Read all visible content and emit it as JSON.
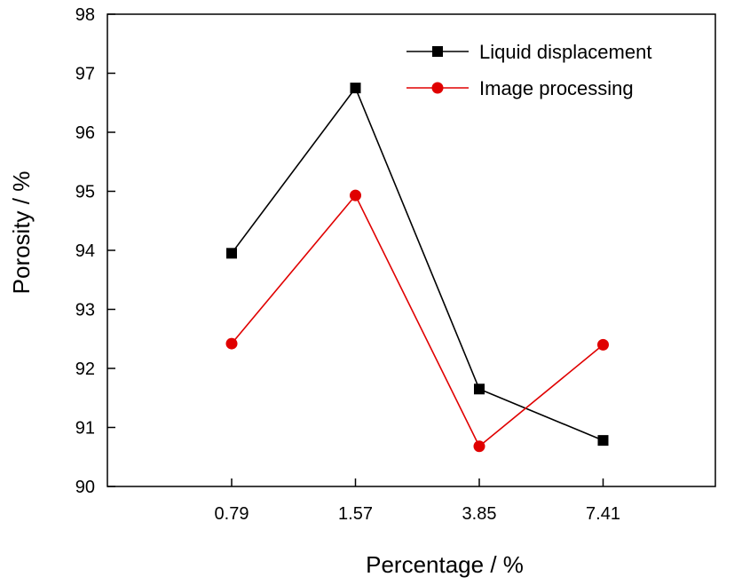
{
  "chart_data": {
    "type": "line",
    "title": "",
    "xlabel": "Percentage / %",
    "ylabel": "Porosity / %",
    "categories": [
      "0.79",
      "1.57",
      "3.85",
      "7.41"
    ],
    "ylim": [
      90,
      98
    ],
    "yticks": [
      90,
      91,
      92,
      93,
      94,
      95,
      96,
      97,
      98
    ],
    "grid": false,
    "legend_position": "top-right",
    "series": [
      {
        "name": "Liquid displacement",
        "values": [
          93.95,
          96.75,
          91.65,
          90.78
        ],
        "color": "#000000",
        "marker": "square"
      },
      {
        "name": "Image processing",
        "values": [
          92.42,
          94.93,
          90.68,
          92.4
        ],
        "color": "#e00000",
        "marker": "circle"
      }
    ]
  }
}
